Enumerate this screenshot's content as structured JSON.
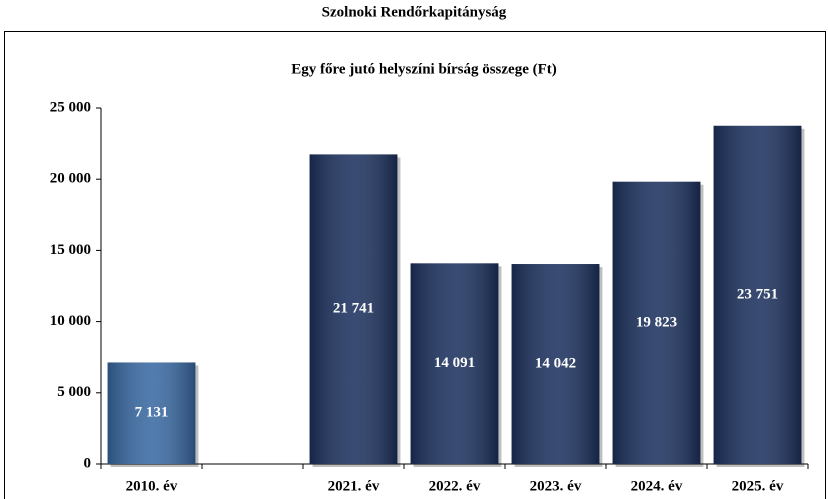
{
  "chart_data": {
    "type": "bar",
    "supertitle": "Szolnoki Rendőrkapitányság",
    "title": "Egy főre jutó helyszíni bírság összege (Ft)",
    "categories": [
      "2010. év",
      null,
      "2021. év",
      "2022. év",
      "2023. év",
      "2024. év",
      "2025. év"
    ],
    "values": [
      7131,
      null,
      21741,
      14091,
      14042,
      19823,
      23751
    ],
    "value_labels": [
      "7 131",
      null,
      "21 741",
      "14 091",
      "14 042",
      "19 823",
      "23 751"
    ],
    "colors": [
      "#3a6aa3",
      "#1d325f",
      "#1d325f",
      "#1d325f",
      "#1d325f",
      "#1d325f",
      "#1d325f"
    ],
    "ylim": [
      0,
      25000
    ],
    "yticks": [
      0,
      {
        "value": 5000,
        "label": "5 000"
      },
      {
        "value": 10000,
        "label": "10 000"
      },
      {
        "value": 15000,
        "label": "15 000"
      },
      {
        "value": 20000,
        "label": "20 000"
      },
      {
        "value": 25000,
        "label": "25 000"
      }
    ],
    "grid": false
  }
}
